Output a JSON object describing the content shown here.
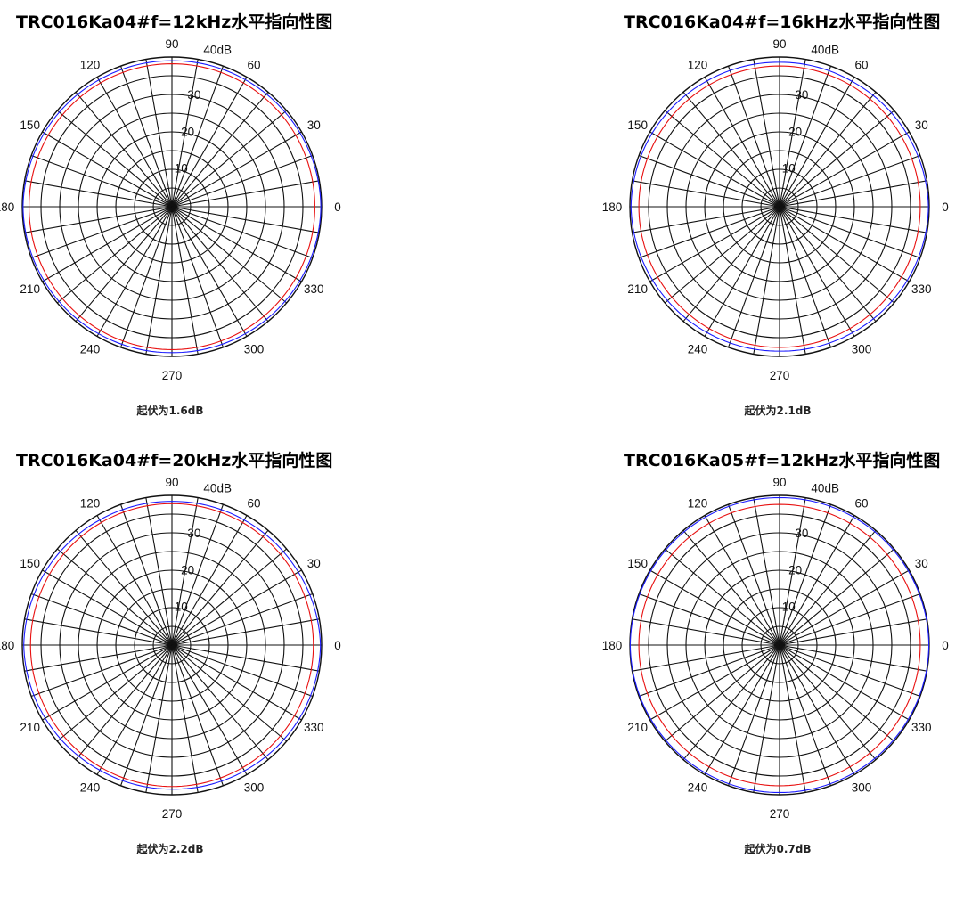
{
  "colors": {
    "grid": "#111111",
    "series_blue": "#1a1aff",
    "series_red": "#e81010"
  },
  "charts": [
    {
      "title": "TRC016Ka04#f=12kHz水平指向性图",
      "ripple": "起伏为1.6dB"
    },
    {
      "title": "TRC016Ka04#f=16kHz水平指向性图",
      "ripple": "起伏为2.1dB"
    },
    {
      "title": "TRC016Ka04#f=20kHz水平指向性图",
      "ripple": "起伏为2.2dB"
    },
    {
      "title": "TRC016Ka05#f=12kHz水平指向性图",
      "ripple": "起伏为0.7dB"
    }
  ],
  "chart_data": [
    {
      "type": "polar",
      "title": "TRC016Ka04#f=12kHz水平指向性图",
      "angle_ticks": [
        "0",
        "30",
        "60",
        "90",
        "120",
        "150",
        "180",
        "210",
        "240",
        "270",
        "300",
        "330"
      ],
      "radial_ticks": [
        "10",
        "20",
        "30",
        "40dB"
      ],
      "radial_range": [
        0,
        40
      ],
      "series": [
        {
          "color": "blue",
          "values": [
            39.8,
            39.5,
            39.2,
            39.0,
            39.1,
            39.4,
            39.8,
            39.5,
            39.2,
            39.0,
            39.2,
            39.5
          ]
        },
        {
          "color": "red",
          "values": [
            38.2,
            38.2,
            38.2,
            38.2,
            38.2,
            38.2,
            38.2,
            38.2,
            38.2,
            38.2,
            38.2,
            38.2
          ]
        }
      ]
    },
    {
      "type": "polar",
      "title": "TRC016Ka04#f=16kHz水平指向性图",
      "angle_ticks": [
        "0",
        "30",
        "60",
        "90",
        "120",
        "150",
        "180",
        "210",
        "240",
        "270",
        "300",
        "330"
      ],
      "radial_ticks": [
        "10",
        "20",
        "30",
        "40dB"
      ],
      "radial_range": [
        0,
        40
      ],
      "series": [
        {
          "color": "blue",
          "values": [
            39.8,
            39.2,
            38.7,
            38.6,
            38.8,
            39.3,
            39.7,
            39.2,
            38.8,
            38.6,
            38.9,
            39.4
          ]
        },
        {
          "color": "red",
          "values": [
            37.6,
            37.6,
            37.6,
            37.6,
            37.6,
            37.6,
            37.6,
            37.6,
            37.6,
            37.6,
            37.6,
            37.6
          ]
        }
      ]
    },
    {
      "type": "polar",
      "title": "TRC016Ka04#f=20kHz水平指向性图",
      "angle_ticks": [
        "0",
        "30",
        "60",
        "90",
        "120",
        "150",
        "180",
        "210",
        "240",
        "270",
        "300",
        "330"
      ],
      "radial_ticks": [
        "10",
        "20",
        "30",
        "40dB"
      ],
      "radial_range": [
        0,
        40
      ],
      "series": [
        {
          "color": "blue",
          "values": [
            39.7,
            39.0,
            38.6,
            38.4,
            38.6,
            39.1,
            39.6,
            39.1,
            38.6,
            38.5,
            38.8,
            39.3
          ]
        },
        {
          "color": "red",
          "values": [
            37.8,
            37.8,
            37.8,
            37.8,
            37.8,
            37.8,
            37.8,
            37.8,
            37.8,
            37.8,
            37.8,
            37.8
          ]
        }
      ]
    },
    {
      "type": "polar",
      "title": "TRC016Ka05#f=12kHz水平指向性图",
      "angle_ticks": [
        "0",
        "30",
        "60",
        "90",
        "120",
        "150",
        "180",
        "210",
        "240",
        "270",
        "300",
        "330"
      ],
      "radial_ticks": [
        "10",
        "20",
        "30",
        "40dB"
      ],
      "radial_range": [
        0,
        40
      ],
      "series": [
        {
          "color": "blue",
          "values": [
            39.9,
            39.7,
            39.5,
            39.4,
            39.5,
            39.7,
            39.9,
            39.7,
            39.5,
            39.4,
            39.5,
            39.7
          ]
        },
        {
          "color": "red",
          "values": [
            37.6,
            37.6,
            37.6,
            37.6,
            37.6,
            37.6,
            37.6,
            37.6,
            37.6,
            37.6,
            37.6,
            37.6
          ]
        }
      ]
    }
  ]
}
